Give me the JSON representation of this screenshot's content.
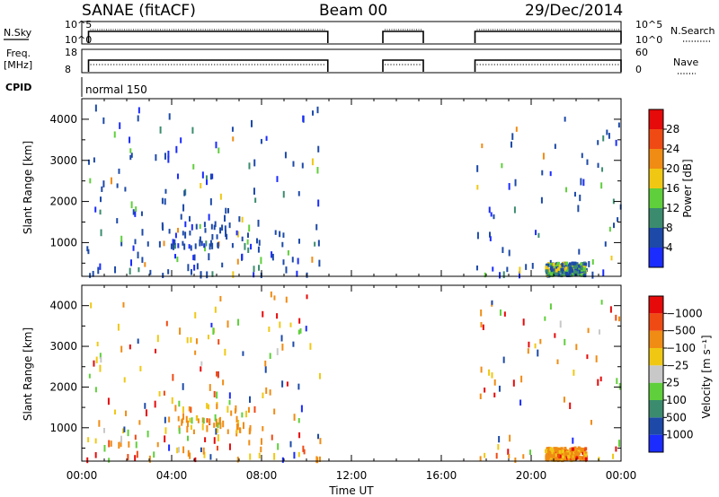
{
  "header": {
    "station": "SANAE (fitACF)",
    "beam": "Beam 00",
    "date": "29/Dec/2014"
  },
  "chart_data": [
    {
      "type": "line",
      "name": "noise-panel",
      "left_label": "N.Sky",
      "left_ticks": [
        "10^5",
        "10^0"
      ],
      "right_label": "N.Search",
      "right_ticks": [
        "10^5",
        "10^0"
      ],
      "series": [
        {
          "name": "N.Sky",
          "style": "solid",
          "x": [
            0.3,
            10.95,
            13.4,
            15.2,
            17.5,
            24.0
          ],
          "segments": [
            [
              0.3,
              10.95
            ],
            [
              13.4,
              15.2
            ],
            [
              17.5,
              24.0
            ]
          ]
        },
        {
          "name": "N.Search",
          "style": "dotted"
        }
      ]
    },
    {
      "type": "line",
      "name": "frequency-panel",
      "left_label": "Freq.",
      "left_unit": "[MHz]",
      "left_ticks": [
        "18",
        "8"
      ],
      "right_label": "Nave",
      "right_ticks": [
        "60",
        "0"
      ],
      "segments": [
        [
          0.3,
          10.95
        ],
        [
          13.4,
          15.2
        ],
        [
          17.5,
          24.0
        ]
      ]
    },
    {
      "type": "table",
      "name": "cpid-panel",
      "label": "CPID",
      "program": "normal 150"
    },
    {
      "type": "scatter",
      "name": "power-panel",
      "ylabel": "Slant Range [km]",
      "ylim": [
        180,
        4500
      ],
      "y_ticks": [
        1000,
        2000,
        3000,
        4000
      ],
      "x_ticks": [
        "00:00",
        "04:00",
        "08:00",
        "12:00",
        "16:00",
        "20:00",
        "00:00"
      ],
      "xlim": [
        0,
        24
      ],
      "colorbar": {
        "label": "Power [dB]",
        "ticks": [
          "4",
          "8",
          "12",
          "16",
          "20",
          "24",
          "28"
        ],
        "colors": [
          "#1a2cff",
          "#1d4aa8",
          "#3b8c6e",
          "#5fcf3b",
          "#f0c814",
          "#f08c14",
          "#f04a14",
          "#e60a0a"
        ]
      },
      "clusters": [
        {
          "x0": 0.2,
          "x1": 10.6,
          "r0": 200,
          "r1": 4300,
          "n": 170,
          "level": "low"
        },
        {
          "x0": 3.5,
          "x1": 7.5,
          "r0": 900,
          "r1": 1600,
          "n": 45,
          "level": "low"
        },
        {
          "x0": 17.5,
          "x1": 24.0,
          "r0": 200,
          "r1": 4100,
          "n": 70,
          "level": "low"
        },
        {
          "x0": 20.6,
          "x1": 22.4,
          "r0": 200,
          "r1": 500,
          "n": 240,
          "level": "band"
        }
      ]
    },
    {
      "type": "scatter",
      "name": "velocity-panel",
      "ylabel": "Slant Range [km]",
      "ylim": [
        180,
        4500
      ],
      "y_ticks": [
        1000,
        2000,
        3000,
        4000
      ],
      "x_ticks": [
        "00:00",
        "04:00",
        "08:00",
        "12:00",
        "16:00",
        "20:00",
        "00:00"
      ],
      "xlim": [
        0,
        24
      ],
      "xlabel": "Time UT",
      "colorbar": {
        "label": "Velocity [m s⁻¹]",
        "ticks": [
          "1000",
          "500",
          "100",
          "25",
          "−25",
          "−100",
          "−500",
          "−1000"
        ],
        "colors": [
          "#1a2cff",
          "#1d4aa8",
          "#3b8c6e",
          "#5fcf3b",
          "#c8c8c8",
          "#f0c814",
          "#f08c14",
          "#f04a14",
          "#e60a0a"
        ]
      },
      "clusters": [
        {
          "x0": 0.2,
          "x1": 10.6,
          "r0": 200,
          "r1": 4300,
          "n": 170,
          "level": "mixed"
        },
        {
          "x0": 3.5,
          "x1": 7.5,
          "r0": 900,
          "r1": 1600,
          "n": 55,
          "level": "orange"
        },
        {
          "x0": 17.5,
          "x1": 24.0,
          "r0": 200,
          "r1": 4100,
          "n": 70,
          "level": "mixed"
        },
        {
          "x0": 20.6,
          "x1": 22.4,
          "r0": 200,
          "r1": 500,
          "n": 240,
          "level": "orangeband"
        }
      ]
    }
  ]
}
